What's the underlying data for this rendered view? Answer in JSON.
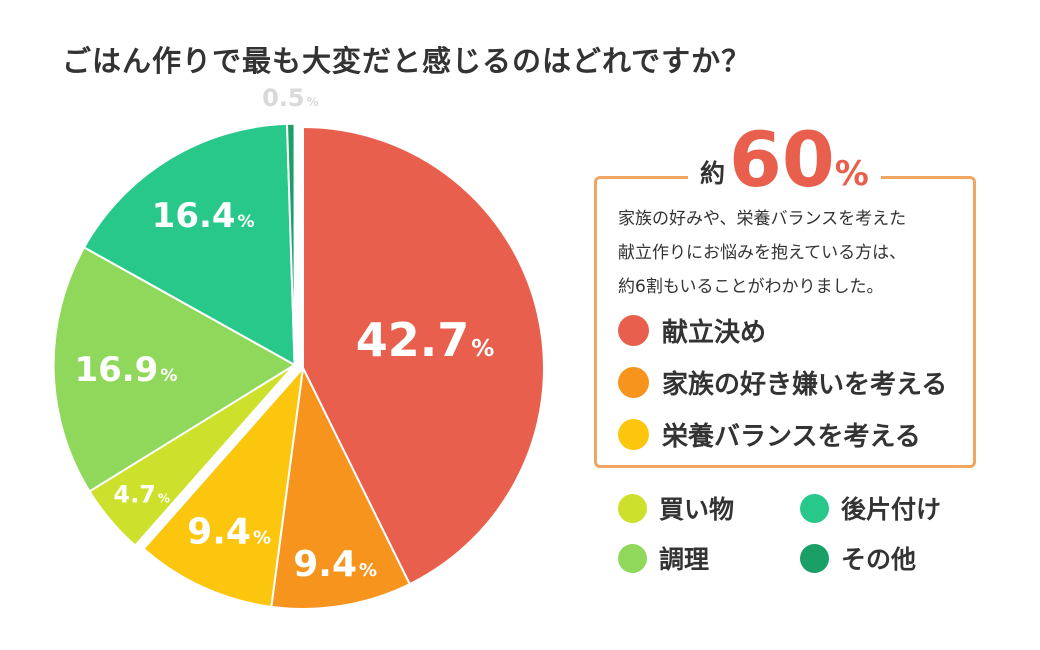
{
  "title": "ごはん作りで最も大変だと感じるのはどれですか？",
  "highlight": {
    "prefix": "約",
    "value": "60",
    "unit": "%",
    "description": [
      "家族の好みや、栄養バランスを考えた",
      "献立作りにお悩みを抱えている方は、",
      "約6割もいることがわかりました。"
    ]
  },
  "chart_data": {
    "type": "pie",
    "title": "ごはん作りで最も大変だと感じるのはどれですか？",
    "unit": "%",
    "start": "12 o'clock, clockwise",
    "slices": [
      {
        "label": "献立決め",
        "value": 42.7,
        "color": "#e8604d",
        "group": "highlighted"
      },
      {
        "label": "家族の好き嫌いを考える",
        "value": 9.4,
        "color": "#f7941d",
        "group": "highlighted"
      },
      {
        "label": "栄養バランスを考える",
        "value": 9.4,
        "color": "#fcc60e",
        "group": "highlighted"
      },
      {
        "label": "買い物",
        "value": 4.7,
        "color": "#cde02c",
        "group": "other"
      },
      {
        "label": "調理",
        "value": 16.9,
        "color": "#8fd85b",
        "group": "other"
      },
      {
        "label": "後片付け",
        "value": 16.4,
        "color": "#27c88a",
        "group": "other"
      },
      {
        "label": "その他",
        "value": 0.5,
        "color": "#1a9f67",
        "group": "other"
      }
    ],
    "data_labels": [
      {
        "value": "42.7",
        "unit": "%",
        "color": "#ffffff"
      },
      {
        "value": "9.4",
        "unit": "%",
        "color": "#ffffff"
      },
      {
        "value": "9.4",
        "unit": "%",
        "color": "#ffffff"
      },
      {
        "value": "4.7",
        "unit": "%",
        "color": "#ffffff"
      },
      {
        "value": "16.9",
        "unit": "%",
        "color": "#ffffff"
      },
      {
        "value": "16.4",
        "unit": "%",
        "color": "#ffffff"
      },
      {
        "value": "0.5",
        "unit": "%",
        "color": "#d9d9d9"
      }
    ]
  },
  "legend": {
    "highlighted": [
      "献立決め",
      "家族の好き嫌いを考える",
      "栄養バランスを考える"
    ],
    "other": [
      "買い物",
      "後片付け",
      "調理",
      "その他"
    ]
  },
  "colors": {
    "accent": "#e8604d",
    "callout_border": "#f0a561",
    "text": "#333333"
  }
}
